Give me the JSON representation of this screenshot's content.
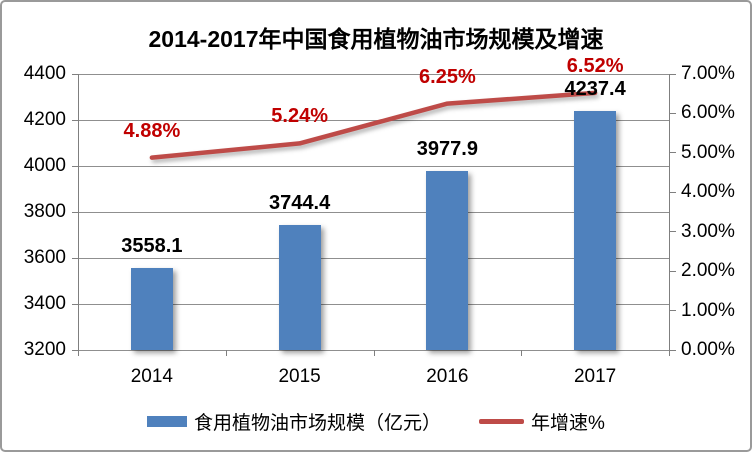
{
  "chart_data": {
    "type": "bar",
    "title": "2014-2017年中国食用植物油市场规模及增速",
    "categories": [
      "2014",
      "2015",
      "2016",
      "2017"
    ],
    "series": [
      {
        "kind": "bar",
        "name": "食用植物油市场规模（亿元）",
        "values": [
          3558.1,
          3744.4,
          3977.9,
          4237.4
        ],
        "data_labels": [
          "3558.1",
          "3744.4",
          "3977.9",
          "4237.4"
        ],
        "color": "#4F81BD",
        "label_color": "#000000",
        "axis": "left"
      },
      {
        "kind": "line",
        "name": "年增速%",
        "values": [
          4.88,
          5.24,
          6.25,
          6.52
        ],
        "data_labels": [
          "4.88%",
          "5.24%",
          "6.25%",
          "6.52%"
        ],
        "color": "#BE4B48",
        "label_color": "#C00000",
        "axis": "right"
      }
    ],
    "left_axis": {
      "min": 3200,
      "max": 4400,
      "step": 200,
      "tick_labels": [
        "4400",
        "4200",
        "4000",
        "3800",
        "3600",
        "3400",
        "3200"
      ]
    },
    "right_axis": {
      "min": 0,
      "max": 7,
      "step": 1,
      "tick_labels": [
        "7.00%",
        "6.00%",
        "5.00%",
        "4.00%",
        "3.00%",
        "2.00%",
        "1.00%",
        "0.00%"
      ]
    },
    "grid": true,
    "legend_position": "bottom"
  }
}
